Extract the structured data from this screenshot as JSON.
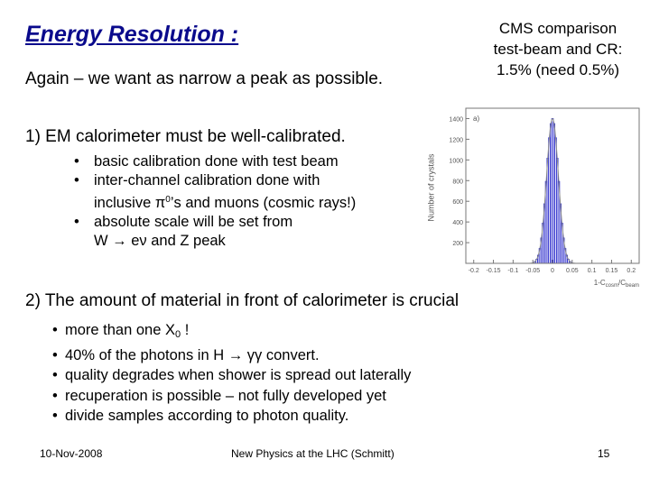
{
  "title": "Energy Resolution :",
  "cms_note": {
    "line1": "CMS comparison",
    "line2": "test-beam and CR:",
    "line3": "1.5%  (need 0.5%)"
  },
  "subtitle": "Again – we want as narrow a peak as possible.",
  "section1": {
    "heading": "1) EM calorimeter must be well-calibrated.",
    "bullet1": "basic calibration done with test beam",
    "bullet2_line1": "inter-channel calibration done with",
    "bullet2_line2_prefix": "inclusive π",
    "bullet2_sup": "0",
    "bullet2_line2_suffix": "’s and muons (cosmic rays!)",
    "bullet3_line1": "absolute scale will be set from",
    "bullet3_line2": "W → eν and Z peak"
  },
  "section2": {
    "heading": "2) The amount of material in front of calorimeter is crucial",
    "bullet1_prefix": "more than one X",
    "bullet1_sub": "0",
    "bullet1_suffix": " !",
    "bullet2": "40% of the photons in H → γγ convert.",
    "bullet3": "quality degrades when shower is spread out laterally",
    "bullet4": "recuperation is possible – not fully developed yet",
    "bullet5": "divide samples according to photon quality."
  },
  "footer": {
    "date": "10-Nov-2008",
    "center": "New Physics at the LHC (Schmitt)",
    "page": "15"
  },
  "histogram": {
    "panel_label": "a)",
    "ylabel": "Number of crystals",
    "xlabel_prefix": "1-C",
    "xlabel_sub1": "cosm",
    "xlabel_mid": "/C",
    "xlabel_sub2": "beam",
    "y_ticks": [
      "1400",
      "1200",
      "1000",
      "800",
      "600",
      "400",
      "200"
    ],
    "x_ticks": [
      "-0.2",
      "-0.15",
      "-0.1",
      "-0.05",
      "0",
      "0.05",
      "0.1",
      "0.15",
      "0.2"
    ],
    "peak_mean": 0,
    "peak_sigma": 0.015,
    "peak_height": 1400,
    "bar_color": "#2a2acc",
    "fit_color": "#8a8a8a"
  }
}
